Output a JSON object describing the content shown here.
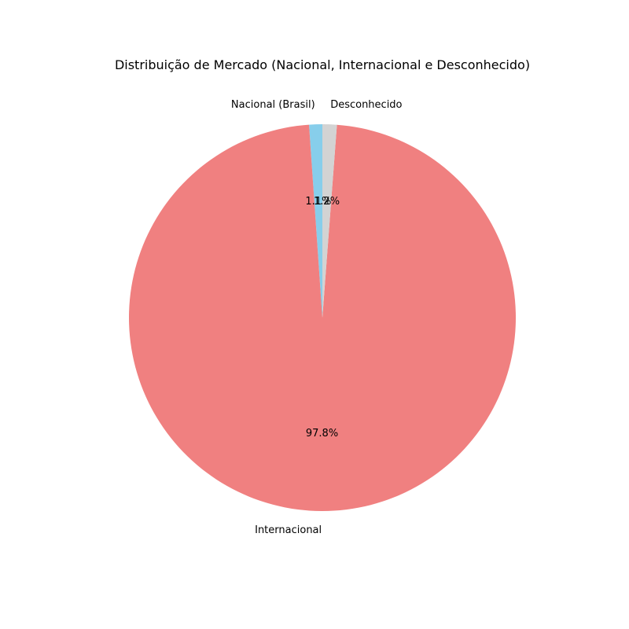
{
  "chart_data": {
    "type": "pie",
    "title": "Distribuição de Mercado (Nacional, Internacional e Desconhecido)",
    "start_angle_deg": 90,
    "direction": "counterclockwise",
    "slices": [
      {
        "label": "Nacional (Brasil)",
        "value": 1.1,
        "pct_label": "1.1%",
        "color": "#87ceeb"
      },
      {
        "label": "Internacional",
        "value": 97.8,
        "pct_label": "97.8%",
        "color": "#f08080"
      },
      {
        "label": "Desconhecido",
        "value": 1.2,
        "pct_label": "1.2%",
        "color": "#d3d3d3"
      }
    ]
  }
}
